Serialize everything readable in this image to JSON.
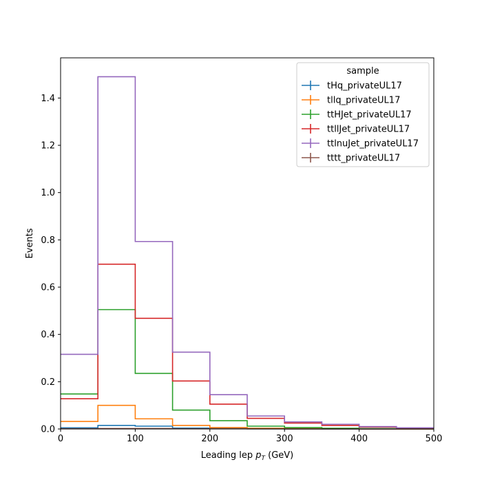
{
  "chart_data": {
    "type": "histogram-step",
    "xlabel_main": "Leading lep ",
    "xlabel_sym": "p",
    "xlabel_sub": "T",
    "xlabel_unit": " (GeV)",
    "ylabel": "Events",
    "xlim": [
      0,
      500
    ],
    "ylim": [
      0,
      1.57
    ],
    "xticks": [
      0,
      100,
      200,
      300,
      400,
      500
    ],
    "yticks": [
      0.0,
      0.2,
      0.4,
      0.6,
      0.8,
      1.0,
      1.2,
      1.4
    ],
    "bin_edges": [
      0,
      50,
      100,
      150,
      200,
      250,
      300,
      350,
      400,
      450,
      500
    ],
    "legend_title": "sample",
    "legend_position": "top-right",
    "series": [
      {
        "name": "tHq_privateUL17",
        "color": "#1f77b4",
        "values": [
          0.005,
          0.015,
          0.012,
          0.004,
          0.002,
          0.001,
          0.0005,
          0.0003,
          0.0002,
          0.0001
        ]
      },
      {
        "name": "tllq_privateUL17",
        "color": "#ff7f0e",
        "values": [
          0.032,
          0.1,
          0.043,
          0.015,
          0.006,
          0.003,
          0.0015,
          0.0008,
          0.0004,
          0.0002
        ]
      },
      {
        "name": "ttHJet_privateUL17",
        "color": "#2ca02c",
        "values": [
          0.148,
          0.505,
          0.235,
          0.08,
          0.035,
          0.012,
          0.006,
          0.003,
          0.0015,
          0.0008
        ]
      },
      {
        "name": "ttllJet_privateUL17",
        "color": "#d62728",
        "values": [
          0.128,
          0.697,
          0.468,
          0.203,
          0.105,
          0.045,
          0.025,
          0.015,
          0.008,
          0.004
        ]
      },
      {
        "name": "ttlnuJet_privateUL17",
        "color": "#9467bd",
        "values": [
          0.316,
          1.49,
          0.793,
          0.325,
          0.145,
          0.055,
          0.03,
          0.02,
          0.01,
          0.005
        ]
      },
      {
        "name": "tttt_privateUL17",
        "color": "#8c564b",
        "values": [
          0.001,
          0.002,
          0.002,
          0.001,
          0.001,
          0.0005,
          0.0003,
          0.0002,
          0.0001,
          0.0001
        ]
      }
    ]
  }
}
